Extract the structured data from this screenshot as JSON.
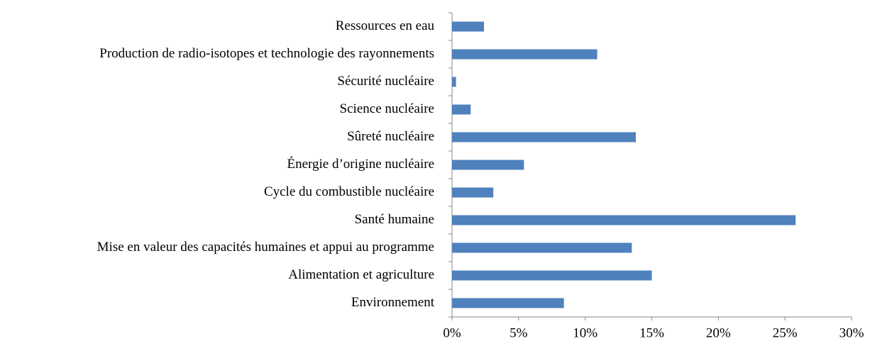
{
  "chart_data": {
    "type": "bar",
    "orientation": "horizontal",
    "categories": [
      "Ressources en eau",
      "Production de radio-isotopes et technologie des rayonnements",
      "Sécurité nucléaire",
      "Science nucléaire",
      "Sûreté nucléaire",
      "Énergie d’origine nucléaire",
      "Cycle du combustible nucléaire",
      "Santé humaine",
      "Mise en valeur des capacités humaines et appui au programme",
      "Alimentation et agriculture",
      "Environnement"
    ],
    "values": [
      2.4,
      10.9,
      0.3,
      1.4,
      13.8,
      5.4,
      3.1,
      25.8,
      13.5,
      15.0,
      8.4
    ],
    "color": "#4f81bd",
    "xlim": [
      0,
      30
    ],
    "xticks": [
      {
        "value": 0,
        "label": "0%"
      },
      {
        "value": 5,
        "label": "5%"
      },
      {
        "value": 10,
        "label": "10%"
      },
      {
        "value": 15,
        "label": "15%"
      },
      {
        "value": 20,
        "label": "20%"
      },
      {
        "value": 25,
        "label": "25%"
      },
      {
        "value": 30,
        "label": "30%"
      }
    ],
    "grid": false
  }
}
